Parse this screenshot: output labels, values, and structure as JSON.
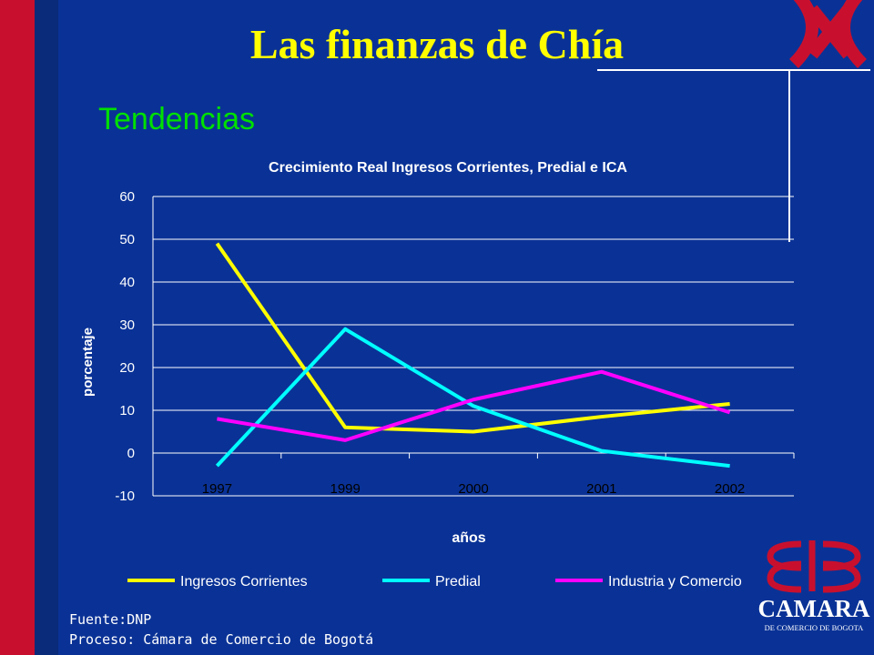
{
  "slide": {
    "title": "Las finanzas de Chía",
    "subtitle": "Tendencias",
    "footer_source": "Fuente:DNP",
    "footer_process": "Proceso: Cámara de Comercio de Bogotá",
    "logo": {
      "name": "CAMARA",
      "tagline": "DE COMERCIO DE BOGOTA"
    }
  },
  "colors": {
    "background": "#0a3296",
    "title": "#ffff00",
    "subtitle": "#00e000",
    "band_red": "#c8102e"
  },
  "chart_data": {
    "type": "line",
    "title": "Crecimiento Real Ingresos Corrientes, Predial e  ICA",
    "xlabel": "años",
    "ylabel": "porcentaje",
    "categories": [
      "1997",
      "1999",
      "2000",
      "2001",
      "2002"
    ],
    "ylim": [
      -10,
      60
    ],
    "yticks": [
      -10,
      0,
      10,
      20,
      30,
      40,
      50,
      60
    ],
    "grid": true,
    "legend_position": "bottom",
    "series": [
      {
        "name": "Ingresos Corrientes",
        "color": "#ffff00",
        "values": [
          49,
          6,
          5,
          8.5,
          11.5
        ]
      },
      {
        "name": "Predial",
        "color": "#00ffff",
        "values": [
          -3,
          29,
          11,
          0.5,
          -3
        ]
      },
      {
        "name": "Industria y Comercio",
        "color": "#ff00ff",
        "values": [
          8,
          3,
          12.5,
          19,
          9.5
        ]
      }
    ]
  }
}
